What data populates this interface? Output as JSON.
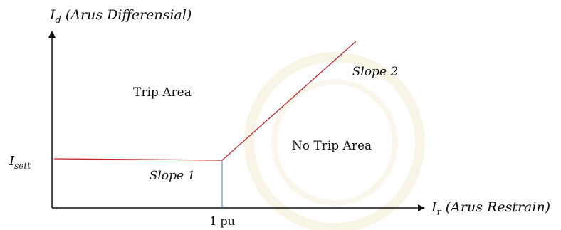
{
  "diagram": {
    "y_axis": {
      "symbol": "I",
      "subscript": "d",
      "caption": " (Arus Differensial)"
    },
    "x_axis": {
      "symbol": "I",
      "subscript": "r",
      "caption": " (Arus Restrain)"
    },
    "setting": {
      "symbol": "I",
      "subscript": "sett"
    },
    "x_tick_label": "1 pu",
    "regions": {
      "trip": "Trip Area",
      "no_trip": "No Trip Area"
    },
    "slopes": {
      "slope1": "Slope 1",
      "slope2": "Slope 2"
    },
    "colors": {
      "axis": "#111111",
      "characteristic": "#c0272d",
      "marker": "#4a90d9",
      "watermark": "#f5efd8"
    }
  }
}
